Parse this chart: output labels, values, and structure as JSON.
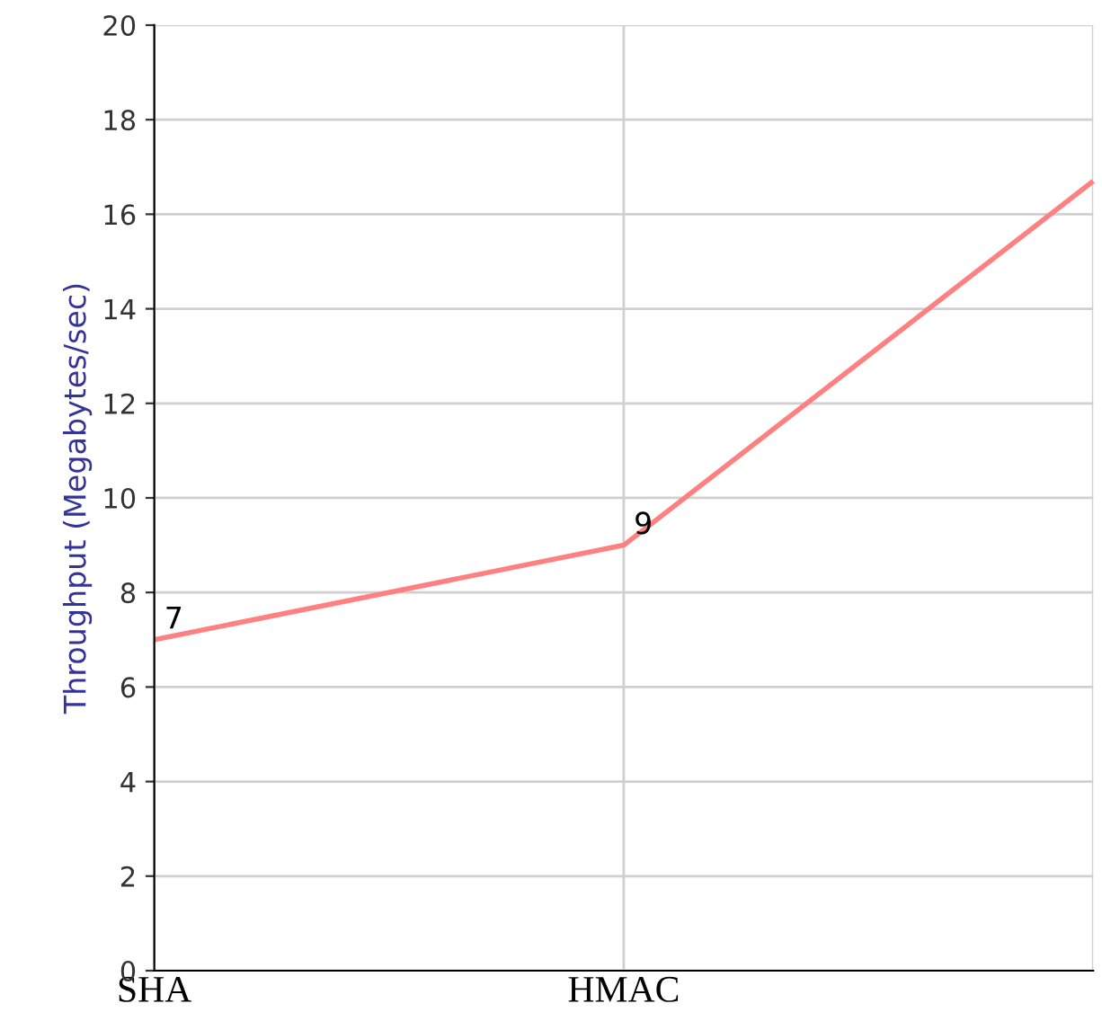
{
  "chart_data": {
    "type": "line",
    "ylabel": "Throughput (Megabytes/sec)",
    "categories": [
      "SHA",
      "HMAC",
      null
    ],
    "series": [
      {
        "color": "#ff8080",
        "values": [
          7,
          9,
          16.7
        ],
        "value_labels": [
          "7",
          "9",
          null
        ]
      }
    ],
    "ylim": [
      0,
      20
    ],
    "yticks": [
      0,
      2,
      4,
      6,
      8,
      10,
      12,
      14,
      16,
      18,
      20
    ],
    "grid": true,
    "marker": "none",
    "line_style": "solid"
  }
}
